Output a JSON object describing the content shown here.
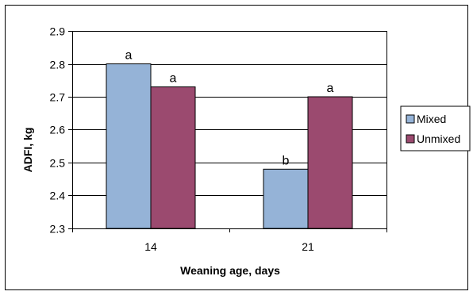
{
  "chart_data": {
    "type": "bar",
    "title": "",
    "xlabel": "Weaning age, days",
    "ylabel": "ADFI, kg",
    "categories": [
      "14",
      "21"
    ],
    "ylim": [
      2.3,
      2.9
    ],
    "yticks": [
      "2.3",
      "2.4",
      "2.5",
      "2.6",
      "2.7",
      "2.8",
      "2.9"
    ],
    "grid": true,
    "legend_position": "right",
    "series": [
      {
        "name": "Mixed",
        "color": "#95b3d7",
        "values": [
          2.8,
          2.48
        ],
        "labels": [
          "a",
          "b"
        ]
      },
      {
        "name": "Unmixed",
        "color": "#9b4a6f",
        "values": [
          2.73,
          2.7
        ],
        "labels": [
          "a",
          "a"
        ]
      }
    ]
  }
}
